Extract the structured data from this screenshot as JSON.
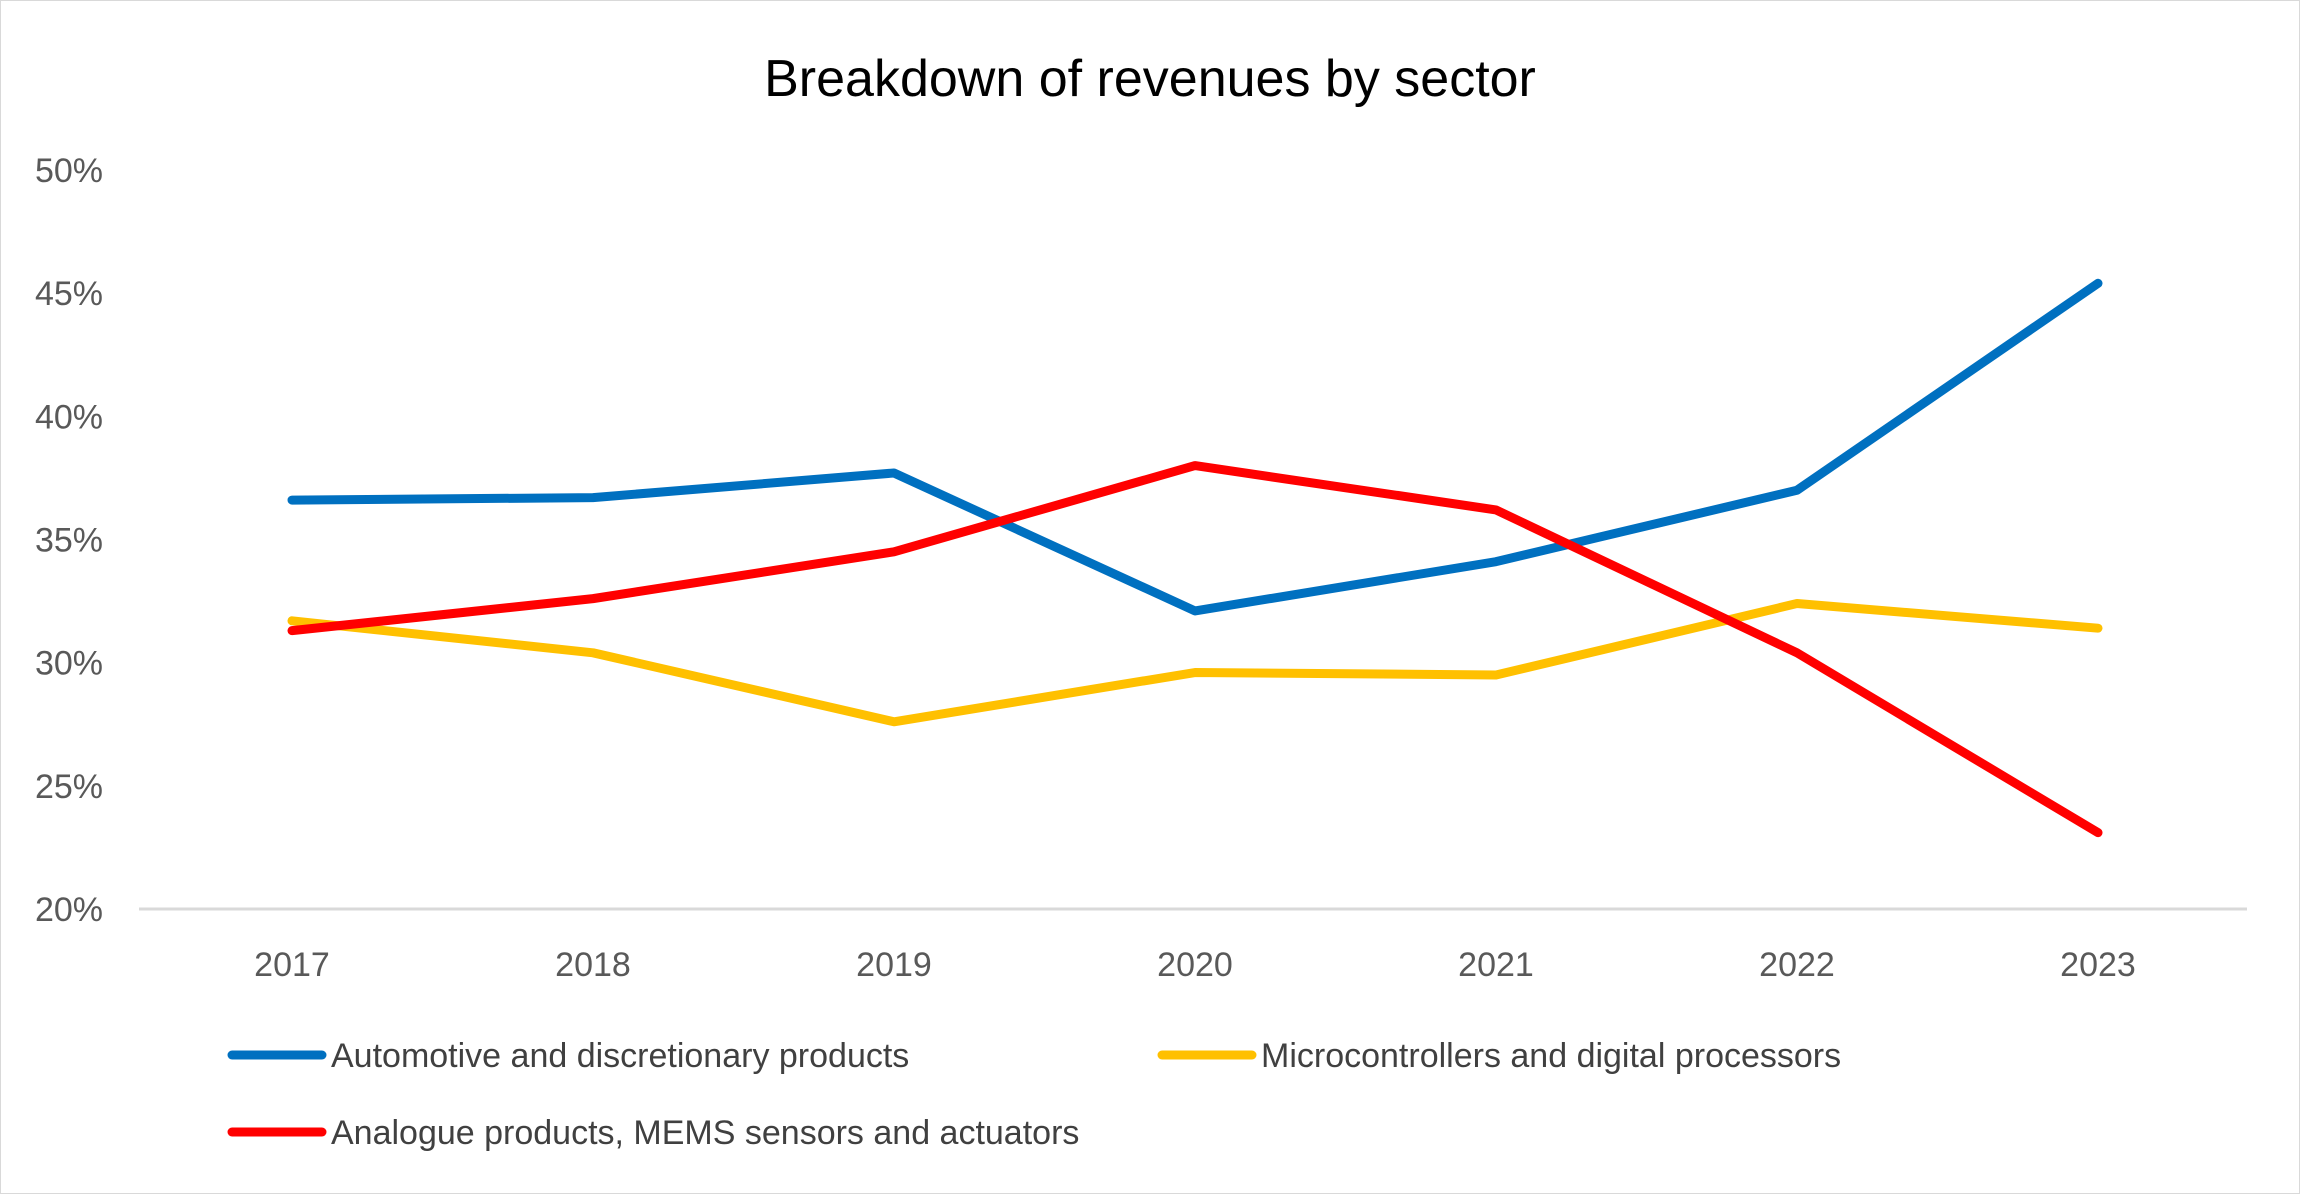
{
  "chart_data": {
    "type": "line",
    "title": "Breakdown of revenues by sector",
    "xlabel": "",
    "ylabel": "",
    "categories": [
      "2017",
      "2018",
      "2019",
      "2020",
      "2021",
      "2022",
      "2023"
    ],
    "ylim": [
      20,
      50
    ],
    "yticks": [
      "20%",
      "25%",
      "30%",
      "35%",
      "40%",
      "45%",
      "50%"
    ],
    "ytick_values": [
      20,
      25,
      30,
      35,
      40,
      45,
      50
    ],
    "grid": false,
    "legend_position": "bottom",
    "series": [
      {
        "name": "Automotive and discretionary products",
        "color": "#0070C0",
        "values": [
          36.6,
          36.7,
          37.7,
          32.1,
          34.1,
          37.0,
          45.4
        ]
      },
      {
        "name": "Microcontrollers and digital processors",
        "color": "#FFC000",
        "values": [
          31.7,
          30.4,
          27.6,
          29.6,
          29.5,
          32.4,
          31.4
        ]
      },
      {
        "name": "Analogue products, MEMS sensors and actuators",
        "color": "#FF0000",
        "values": [
          31.3,
          32.6,
          34.5,
          38.0,
          36.2,
          30.4,
          23.1
        ]
      }
    ]
  }
}
